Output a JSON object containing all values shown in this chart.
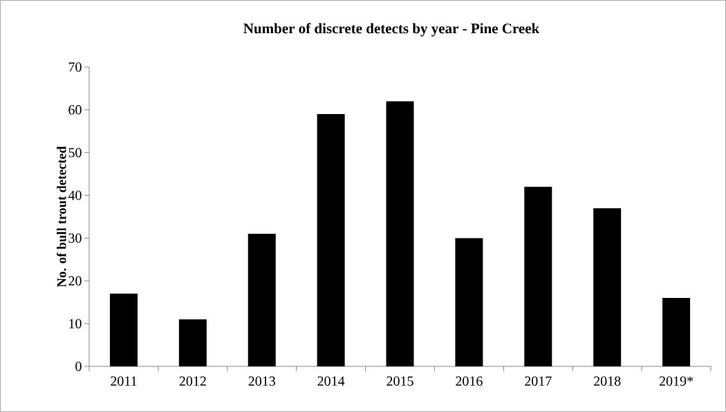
{
  "chart_data": {
    "type": "bar",
    "title": "Number of discrete detects by year - Pine Creek",
    "ylabel": "No. of bull trout detected",
    "categories": [
      "2011",
      "2012",
      "2013",
      "2014",
      "2015",
      "2016",
      "2017",
      "2018",
      "2019*"
    ],
    "values": [
      17,
      11,
      31,
      59,
      62,
      30,
      42,
      37,
      16
    ],
    "color": "#000000",
    "ylim": [
      0,
      70
    ],
    "yticks": [
      0,
      10,
      20,
      30,
      40,
      50,
      60,
      70
    ]
  }
}
